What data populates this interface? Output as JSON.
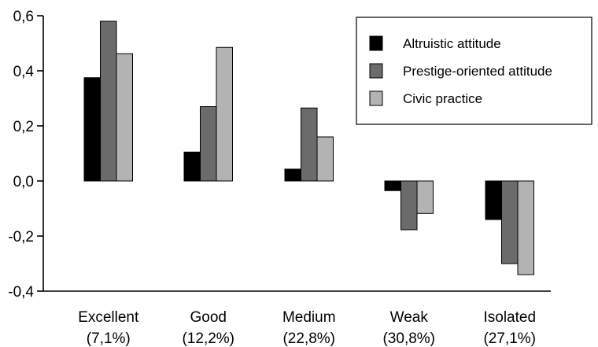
{
  "chart_data": {
    "type": "bar",
    "title": "",
    "xlabel": "",
    "ylabel": "",
    "ylim": [
      -0.4,
      0.6
    ],
    "yticks": [
      "0,6",
      "0,4",
      "0,2",
      "0,0",
      "-0,2",
      "-0,4"
    ],
    "ytick_values": [
      0.6,
      0.4,
      0.2,
      0.0,
      -0.2,
      -0.4
    ],
    "categories": [
      {
        "name": "Excellent",
        "share": "(7,1%)"
      },
      {
        "name": "Good",
        "share": "(12,2%)"
      },
      {
        "name": "Medium",
        "share": "(22,8%)"
      },
      {
        "name": "Weak",
        "share": "(30,8%)"
      },
      {
        "name": "Isolated",
        "share": "(27,1%)"
      }
    ],
    "series": [
      {
        "name": "Altruistic attitude",
        "color": "#000000",
        "values": [
          0.375,
          0.105,
          0.043,
          -0.035,
          -0.14
        ]
      },
      {
        "name": "Prestige-oriented attitude",
        "color": "#6b6b6b",
        "values": [
          0.58,
          0.27,
          0.265,
          -0.177,
          -0.3
        ]
      },
      {
        "name": "Civic practice",
        "color": "#b3b3b3",
        "values": [
          0.462,
          0.485,
          0.16,
          -0.118,
          -0.34
        ]
      }
    ],
    "legend_position": "top-right",
    "grid": false
  }
}
